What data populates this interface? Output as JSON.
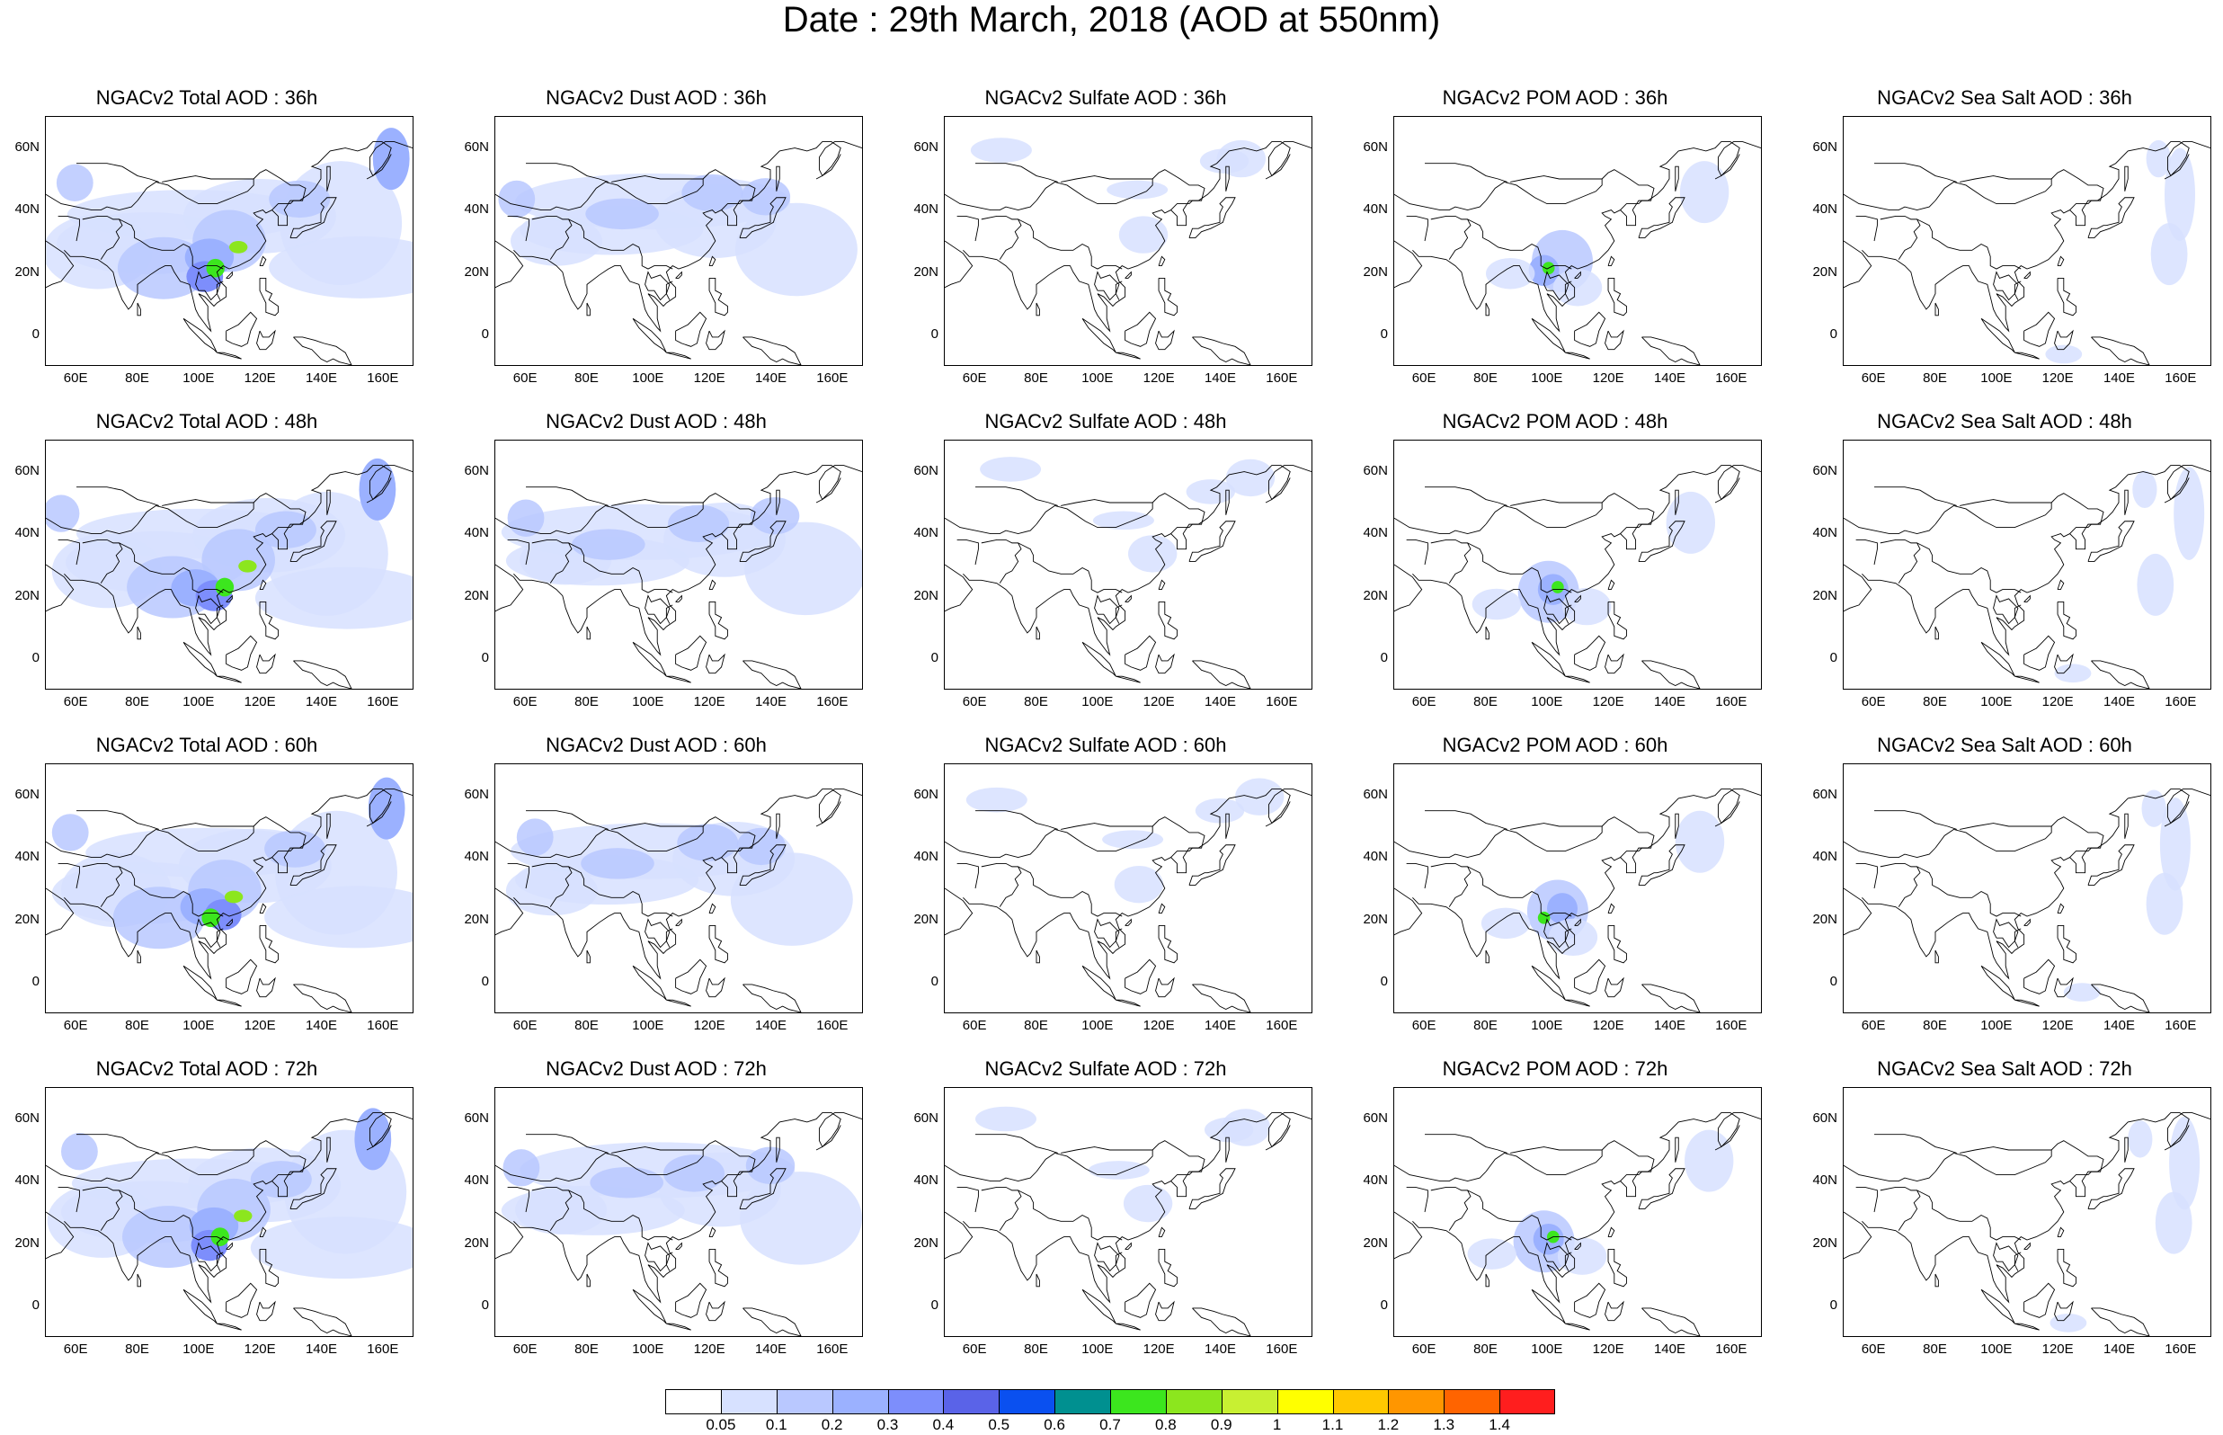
{
  "title": "Date : 29th March, 2018 (AOD at 550nm)",
  "panels": [
    [
      "NGACv2 Total AOD : 36h",
      "NGACv2 Dust AOD : 36h",
      "NGACv2 Sulfate AOD : 36h",
      "NGACv2 POM AOD : 36h",
      "NGACv2 Sea Salt AOD : 36h"
    ],
    [
      "NGACv2 Total AOD : 48h",
      "NGACv2 Dust AOD : 48h",
      "NGACv2 Sulfate AOD : 48h",
      "NGACv2 POM AOD : 48h",
      "NGACv2 Sea Salt AOD : 48h"
    ],
    [
      "NGACv2 Total AOD : 60h",
      "NGACv2 Dust AOD : 60h",
      "NGACv2 Sulfate AOD : 60h",
      "NGACv2 POM AOD : 60h",
      "NGACv2 Sea Salt AOD : 60h"
    ],
    [
      "NGACv2 Total AOD : 72h",
      "NGACv2 Dust AOD : 72h",
      "NGACv2 Sulfate AOD : 72h",
      "NGACv2 POM AOD : 72h",
      "NGACv2 Sea Salt  AOD : 72h"
    ]
  ],
  "axes": {
    "x_ticks": [
      "60E",
      "80E",
      "100E",
      "120E",
      "140E",
      "160E"
    ],
    "y_ticks": [
      "60N",
      "40N",
      "20N",
      "0"
    ]
  },
  "colorbar": {
    "labels": [
      "0.05",
      "0.1",
      "0.2",
      "0.3",
      "0.4",
      "0.5",
      "0.6",
      "0.7",
      "0.8",
      "0.9",
      "1",
      "1.1",
      "1.2",
      "1.3",
      "1.4"
    ],
    "colors": [
      "#ffffff",
      "#d7e1ff",
      "#b9c8ff",
      "#9bb1ff",
      "#7d8efc",
      "#5a63e8",
      "#0a50f0",
      "#009090",
      "#3ce61e",
      "#8ce61e",
      "#c8f032",
      "#ffff00",
      "#ffc800",
      "#ff9600",
      "#ff6400",
      "#ff1e1e"
    ]
  },
  "colors": {
    "background": "#ffffff",
    "coastline": "#000000"
  }
}
